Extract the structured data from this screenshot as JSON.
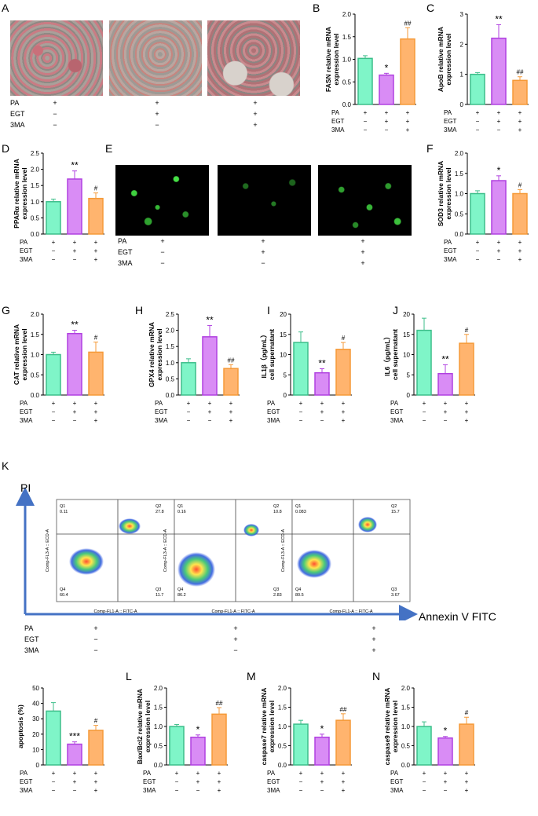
{
  "panel_letters": [
    "A",
    "B",
    "C",
    "D",
    "E",
    "F",
    "G",
    "H",
    "I",
    "J",
    "K",
    "L",
    "M",
    "N"
  ],
  "treatments": {
    "row_labels": [
      "PA",
      "EGT",
      "3MA"
    ],
    "signs": [
      [
        "+",
        "+",
        "+"
      ],
      [
        "−",
        "+",
        "+"
      ],
      [
        "−",
        "−",
        "+"
      ]
    ]
  },
  "colors": {
    "control": "#7FF5C8",
    "egt": "#D98CF5",
    "egt_3ma": "#FFB46E",
    "green": "#3DBE8A",
    "purple": "#B040E0",
    "orange": "#F59A38"
  },
  "flow": {
    "y_title": "PI",
    "x_title": "Annexin V FITC",
    "x_axis_text": "Comp-FL1-A :: FITC-A",
    "y_axis_text": "Comp-FL3-A :: ECD-A",
    "plots": [
      {
        "q1": "Q1",
        "q1v": "0.11",
        "q2": "Q2",
        "q2v": "27.8",
        "q3": "Q3",
        "q3v": "11.7",
        "q4": "Q4",
        "q4v": "60.4"
      },
      {
        "q1": "Q1",
        "q1v": "0.16",
        "q2": "Q2",
        "q2v": "10.8",
        "q3": "Q3",
        "q3v": "2.83",
        "q4": "Q4",
        "q4v": "86.2"
      },
      {
        "q1": "Q1",
        "q1v": "0.083",
        "q2": "Q2",
        "q2v": "15.7",
        "q3": "Q3",
        "q3v": "3.67",
        "q4": "Q4",
        "q4v": "80.5"
      }
    ]
  },
  "chart_data": [
    {
      "panel": "B",
      "type": "bar",
      "ylabel": "FASN relative mRNA\nexpression level",
      "yticks": [
        "0.0",
        "0.5",
        "1.0",
        "1.5",
        "2.0"
      ],
      "ylim": [
        0,
        2.0
      ],
      "values": [
        1.02,
        0.65,
        1.45
      ],
      "errors": [
        0.06,
        0.04,
        0.25
      ],
      "sig": [
        "",
        "*",
        "##"
      ]
    },
    {
      "panel": "C",
      "type": "bar",
      "ylabel": "ApoB relative mRNA\nexpression level",
      "yticks": [
        "0",
        "1",
        "2",
        "3"
      ],
      "ylim": [
        0,
        3
      ],
      "values": [
        1.0,
        2.2,
        0.8
      ],
      "errors": [
        0.06,
        0.45,
        0.12
      ],
      "sig": [
        "",
        "**",
        "##"
      ]
    },
    {
      "panel": "D",
      "type": "bar",
      "ylabel": "PPARα relative mRNA\nexpression level",
      "yticks": [
        "0.0",
        "0.5",
        "1.0",
        "1.5",
        "2.0",
        "2.5"
      ],
      "ylim": [
        0,
        2.5
      ],
      "values": [
        1.0,
        1.7,
        1.1
      ],
      "errors": [
        0.08,
        0.25,
        0.17
      ],
      "sig": [
        "",
        "**",
        "#"
      ]
    },
    {
      "panel": "F",
      "type": "bar",
      "ylabel": "SOD3 relative mRNA\nexpression level",
      "yticks": [
        "0.0",
        "0.5",
        "1.0",
        "1.5",
        "2.0"
      ],
      "ylim": [
        0,
        2.0
      ],
      "values": [
        1.0,
        1.32,
        1.0
      ],
      "errors": [
        0.07,
        0.12,
        0.1
      ],
      "sig": [
        "",
        "*",
        "#"
      ]
    },
    {
      "panel": "G",
      "type": "bar",
      "ylabel": "CAT relative mRNA\nexpression level",
      "yticks": [
        "0.0",
        "0.5",
        "1.0",
        "1.5",
        "2.0"
      ],
      "ylim": [
        0,
        2.0
      ],
      "values": [
        1.0,
        1.52,
        1.06
      ],
      "errors": [
        0.06,
        0.08,
        0.25
      ],
      "sig": [
        "",
        "**",
        "#"
      ]
    },
    {
      "panel": "H",
      "type": "bar",
      "ylabel": "GPX4 relative mRNA\nexpression level",
      "yticks": [
        "0.0",
        "0.5",
        "1.0",
        "1.5",
        "2.0",
        "2.5"
      ],
      "ylim": [
        0,
        2.5
      ],
      "values": [
        1.0,
        1.8,
        0.82
      ],
      "errors": [
        0.12,
        0.35,
        0.12
      ],
      "sig": [
        "",
        "**",
        "##"
      ]
    },
    {
      "panel": "I",
      "type": "bar",
      "ylabel": "IL1β（pg/mL）\ncell supernatant",
      "yticks": [
        "0",
        "5",
        "10",
        "15",
        "20"
      ],
      "ylim": [
        0,
        20
      ],
      "values": [
        13,
        5.5,
        11.3
      ],
      "errors": [
        2.6,
        1.0,
        1.7
      ],
      "sig": [
        "",
        "**",
        "#"
      ]
    },
    {
      "panel": "J",
      "type": "bar",
      "ylabel": "IL6（pg/mL）\ncell supernatant",
      "yticks": [
        "0",
        "5",
        "10",
        "15",
        "20"
      ],
      "ylim": [
        0,
        20
      ],
      "values": [
        16,
        5.3,
        12.8
      ],
      "errors": [
        3.0,
        2.2,
        2.2
      ],
      "sig": [
        "",
        "**",
        "#"
      ]
    },
    {
      "panel": "K",
      "type": "bar",
      "ylabel": "apoptosis (%)",
      "yticks": [
        "0",
        "10",
        "20",
        "30",
        "40",
        "50"
      ],
      "ylim": [
        0,
        50
      ],
      "values": [
        35,
        13.5,
        22.5
      ],
      "errors": [
        5.5,
        1.5,
        3.2
      ],
      "sig": [
        "",
        "***",
        "#"
      ]
    },
    {
      "panel": "L",
      "type": "bar",
      "ylabel": "Bax/Bcl2 relative mRNA\nexpression level",
      "yticks": [
        "0.0",
        "0.5",
        "1.0",
        "1.5",
        "2.0"
      ],
      "ylim": [
        0,
        2.0
      ],
      "values": [
        1.0,
        0.72,
        1.32
      ],
      "errors": [
        0.05,
        0.06,
        0.17
      ],
      "sig": [
        "",
        "*",
        "##"
      ]
    },
    {
      "panel": "M",
      "type": "bar",
      "ylabel": "caspase7 relative mRNA\nexpression level",
      "yticks": [
        "0.0",
        "0.5",
        "1.0",
        "1.5",
        "2.0"
      ],
      "ylim": [
        0,
        2.0
      ],
      "values": [
        1.06,
        0.72,
        1.16
      ],
      "errors": [
        0.1,
        0.08,
        0.17
      ],
      "sig": [
        "",
        "*",
        "##"
      ]
    },
    {
      "panel": "N",
      "type": "bar",
      "ylabel": "caspase9 relative mRNA\nexpression level",
      "yticks": [
        "0.0",
        "0.5",
        "1.0",
        "1.5",
        "2.0"
      ],
      "ylim": [
        0,
        2.0
      ],
      "values": [
        1.0,
        0.7,
        1.06
      ],
      "errors": [
        0.12,
        0.04,
        0.18
      ],
      "sig": [
        "",
        "*",
        "#"
      ]
    }
  ]
}
